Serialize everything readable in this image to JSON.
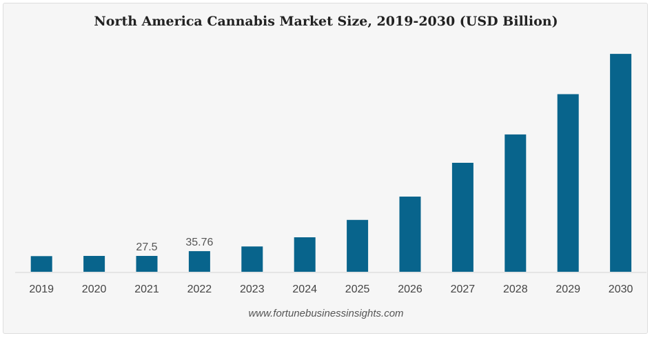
{
  "chart_data": {
    "type": "bar",
    "title": "North America Cannabis Market Size, 2019-2030 (USD Billion)",
    "xlabel": "",
    "ylabel": "",
    "categories": [
      "2019",
      "2020",
      "2021",
      "2022",
      "2023",
      "2024",
      "2025",
      "2026",
      "2027",
      "2028",
      "2029",
      "2030"
    ],
    "values": [
      27.2,
      27.5,
      27.5,
      35.76,
      44.0,
      59.9,
      90.1,
      130.5,
      189.2,
      238.5,
      308.4,
      378.3
    ],
    "data_labels": [
      "",
      "",
      "27.5",
      "35.76",
      "",
      "",
      "",
      "",
      "",
      "",
      "",
      ""
    ],
    "ylim": [
      0,
      400
    ],
    "bar_color": "#08648c",
    "grid": false,
    "legend": "none"
  },
  "source": "www.fortunebusinessinsights.com"
}
